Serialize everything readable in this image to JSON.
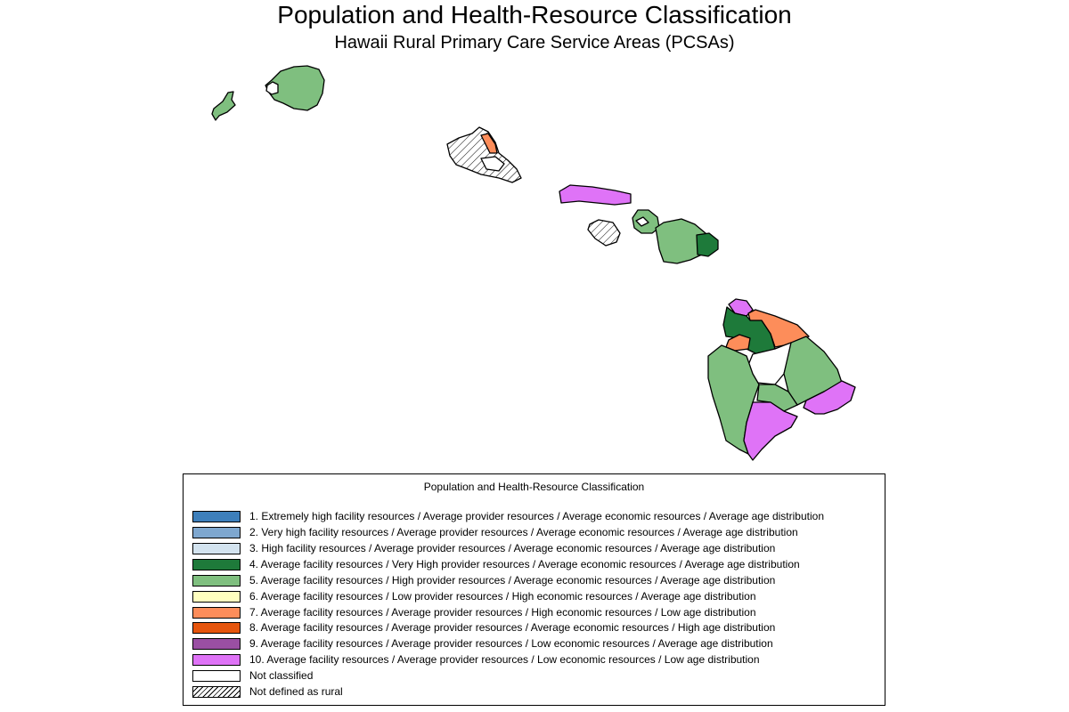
{
  "title": "Population and Health-Resource Classification",
  "subtitle": "Hawaii Rural Primary Care Service Areas (PCSAs)",
  "legend": {
    "title": "Population and Health-Resource Classification",
    "items": [
      {
        "label": "1. Extremely high facility resources / Average provider resources / Average economic resources / Average age distribution",
        "color": "#3d7fbb"
      },
      {
        "label": "2. Very high facility resources / Average provider resources / Average economic resources / Average age distribution",
        "color": "#7ea7cf"
      },
      {
        "label": "3. High facility resources / Average provider resources / Average economic resources / Average age distribution",
        "color": "#d3e3ef"
      },
      {
        "label": "4. Average facility resources / Very High provider resources / Average economic resources / Average age distribution",
        "color": "#1e7a3a"
      },
      {
        "label": "5. Average facility resources / High provider resources / Average economic resources / Average age distribution",
        "color": "#7fbf7f"
      },
      {
        "label": "6. Average facility resources / Low provider resources / High economic resources / Average age distribution",
        "color": "#ffffbf"
      },
      {
        "label": "7. Average facility resources / Average provider resources / High economic resources / Low age distribution",
        "color": "#fd8d5a"
      },
      {
        "label": "8. Average facility resources / Average provider resources / Average economic resources / High age distribution",
        "color": "#e6550d"
      },
      {
        "label": "9. Average facility resources / Average provider resources / Low economic resources / Average age distribution",
        "color": "#9a4fa3"
      },
      {
        "label": "10. Average facility resources / Average provider resources / Low economic resources / Low age distribution",
        "color": "#df73f7"
      },
      {
        "label": "Not classified",
        "color": "#ffffff"
      },
      {
        "label": "Not defined as rural",
        "color": "hatch"
      }
    ]
  }
}
